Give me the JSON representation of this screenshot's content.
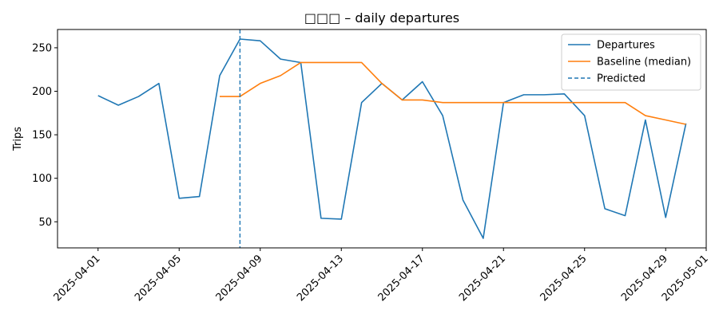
{
  "colors": {
    "departures": "#1f77b4",
    "baseline": "#ff7f0e",
    "predicted": "#1f77b4",
    "axis": "#000000"
  },
  "chart_data": {
    "type": "line",
    "title": "□□□ – daily departures",
    "xlabel": "",
    "ylabel": "Trips",
    "x_ticks": [
      "2025-04-01",
      "2025-04-05",
      "2025-04-09",
      "2025-04-13",
      "2025-04-17",
      "2025-04-21",
      "2025-04-25",
      "2025-04-29",
      "2025-05-01"
    ],
    "y_ticks": [
      50,
      100,
      150,
      200,
      250
    ],
    "xlim": [
      "2025-03-30",
      "2025-05-01"
    ],
    "ylim": [
      20,
      271
    ],
    "grid": false,
    "legend_position": "top-right",
    "series": [
      {
        "name": "Departures",
        "style": "solid",
        "points": [
          [
            "2025-04-01",
            195
          ],
          [
            "2025-04-02",
            184
          ],
          [
            "2025-04-03",
            194
          ],
          [
            "2025-04-04",
            209
          ],
          [
            "2025-04-05",
            77
          ],
          [
            "2025-04-06",
            79
          ],
          [
            "2025-04-07",
            218
          ],
          [
            "2025-04-08",
            260
          ],
          [
            "2025-04-09",
            258
          ],
          [
            "2025-04-10",
            237
          ],
          [
            "2025-04-11",
            233
          ],
          [
            "2025-04-12",
            54
          ],
          [
            "2025-04-13",
            53
          ],
          [
            "2025-04-14",
            187
          ],
          [
            "2025-04-15",
            209
          ],
          [
            "2025-04-16",
            190
          ],
          [
            "2025-04-17",
            211
          ],
          [
            "2025-04-18",
            172
          ],
          [
            "2025-04-19",
            75
          ],
          [
            "2025-04-20",
            31
          ],
          [
            "2025-04-21",
            187
          ],
          [
            "2025-04-22",
            196
          ],
          [
            "2025-04-23",
            196
          ],
          [
            "2025-04-24",
            197
          ],
          [
            "2025-04-25",
            172
          ],
          [
            "2025-04-26",
            65
          ],
          [
            "2025-04-27",
            57
          ],
          [
            "2025-04-28",
            167
          ],
          [
            "2025-04-29",
            55
          ],
          [
            "2025-04-30",
            163
          ]
        ]
      },
      {
        "name": "Baseline (median)",
        "style": "solid",
        "points": [
          [
            "2025-04-07",
            194
          ],
          [
            "2025-04-08",
            194
          ],
          [
            "2025-04-09",
            209
          ],
          [
            "2025-04-10",
            218
          ],
          [
            "2025-04-11",
            233
          ],
          [
            "2025-04-12",
            233
          ],
          [
            "2025-04-13",
            233
          ],
          [
            "2025-04-14",
            233
          ],
          [
            "2025-04-15",
            209
          ],
          [
            "2025-04-16",
            190
          ],
          [
            "2025-04-17",
            190
          ],
          [
            "2025-04-18",
            187
          ],
          [
            "2025-04-19",
            187
          ],
          [
            "2025-04-20",
            187
          ],
          [
            "2025-04-21",
            187
          ],
          [
            "2025-04-22",
            187
          ],
          [
            "2025-04-23",
            187
          ],
          [
            "2025-04-24",
            187
          ],
          [
            "2025-04-25",
            187
          ],
          [
            "2025-04-26",
            187
          ],
          [
            "2025-04-27",
            187
          ],
          [
            "2025-04-28",
            172
          ],
          [
            "2025-04-29",
            167
          ],
          [
            "2025-04-30",
            162
          ]
        ]
      }
    ],
    "vlines": [
      {
        "name": "Predicted",
        "x": "2025-04-08",
        "style": "dashed"
      }
    ]
  }
}
